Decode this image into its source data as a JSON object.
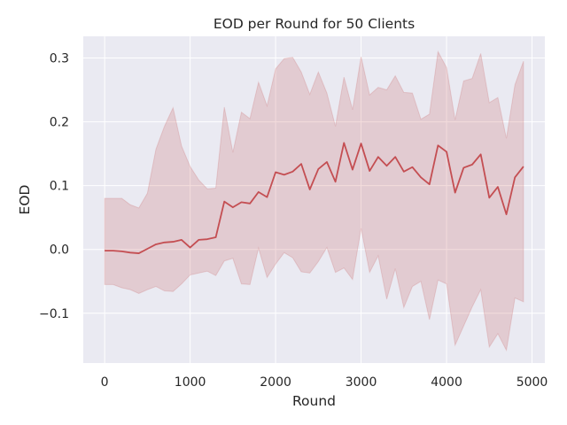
{
  "chart_data": {
    "type": "line",
    "title": "EOD per Round for 50 Clients",
    "xlabel": "Round",
    "ylabel": "EOD",
    "xlim": [
      -250,
      5150
    ],
    "ylim": [
      -0.178,
      0.334
    ],
    "grid": true,
    "xticks": [
      0,
      1000,
      2000,
      3000,
      4000,
      5000
    ],
    "xtick_labels": [
      "0",
      "1000",
      "2000",
      "3000",
      "4000",
      "5000"
    ],
    "yticks": [
      -0.1,
      0.0,
      0.1,
      0.2,
      0.3
    ],
    "ytick_labels": [
      "−0.1",
      "0.0",
      "0.1",
      "0.2",
      "0.3"
    ],
    "colors": {
      "line": "#c44e52",
      "band": "#c44e52",
      "background": "#eaeaf2",
      "grid": "#ffffff"
    },
    "x": [
      0,
      100,
      200,
      300,
      400,
      500,
      600,
      700,
      800,
      900,
      1000,
      1100,
      1200,
      1300,
      1400,
      1500,
      1600,
      1700,
      1800,
      1900,
      2000,
      2100,
      2200,
      2300,
      2400,
      2500,
      2600,
      2700,
      2800,
      2900,
      3000,
      3100,
      3200,
      3300,
      3400,
      3500,
      3600,
      3700,
      3800,
      3900,
      4000,
      4100,
      4200,
      4300,
      4400,
      4500,
      4600,
      4700,
      4800,
      4900
    ],
    "series": [
      {
        "values": [
          -0.002,
          -0.002,
          -0.003,
          -0.005,
          -0.006,
          0.001,
          0.008,
          0.011,
          0.012,
          0.015,
          0.003,
          0.015,
          0.016,
          0.019,
          0.075,
          0.066,
          0.074,
          0.072,
          0.09,
          0.082,
          0.121,
          0.117,
          0.122,
          0.134,
          0.094,
          0.126,
          0.137,
          0.106,
          0.167,
          0.125,
          0.166,
          0.123,
          0.145,
          0.131,
          0.145,
          0.122,
          0.129,
          0.113,
          0.102,
          0.163,
          0.153,
          0.089,
          0.128,
          0.133,
          0.149,
          0.081,
          0.098,
          0.055,
          0.113,
          0.13
        ],
        "lower": [
          -0.055,
          -0.055,
          -0.06,
          -0.063,
          -0.069,
          -0.063,
          -0.058,
          -0.065,
          -0.066,
          -0.054,
          -0.04,
          -0.037,
          -0.034,
          -0.041,
          -0.018,
          -0.014,
          -0.054,
          -0.055,
          0.002,
          -0.044,
          -0.023,
          -0.005,
          -0.013,
          -0.035,
          -0.037,
          -0.019,
          0.003,
          -0.036,
          -0.029,
          -0.047,
          0.033,
          -0.036,
          -0.01,
          -0.078,
          -0.03,
          -0.091,
          -0.058,
          -0.05,
          -0.11,
          -0.048,
          -0.054,
          -0.15,
          -0.12,
          -0.09,
          -0.063,
          -0.153,
          -0.132,
          -0.158,
          -0.076,
          -0.082
        ],
        "upper": [
          0.08,
          0.08,
          0.08,
          0.07,
          0.065,
          0.088,
          0.157,
          0.193,
          0.222,
          0.162,
          0.13,
          0.109,
          0.095,
          0.096,
          0.223,
          0.152,
          0.215,
          0.205,
          0.262,
          0.225,
          0.283,
          0.299,
          0.301,
          0.278,
          0.243,
          0.278,
          0.245,
          0.193,
          0.27,
          0.219,
          0.302,
          0.242,
          0.254,
          0.25,
          0.272,
          0.246,
          0.245,
          0.204,
          0.212,
          0.31,
          0.285,
          0.203,
          0.264,
          0.268,
          0.307,
          0.23,
          0.238,
          0.174,
          0.258,
          0.295
        ]
      }
    ]
  }
}
